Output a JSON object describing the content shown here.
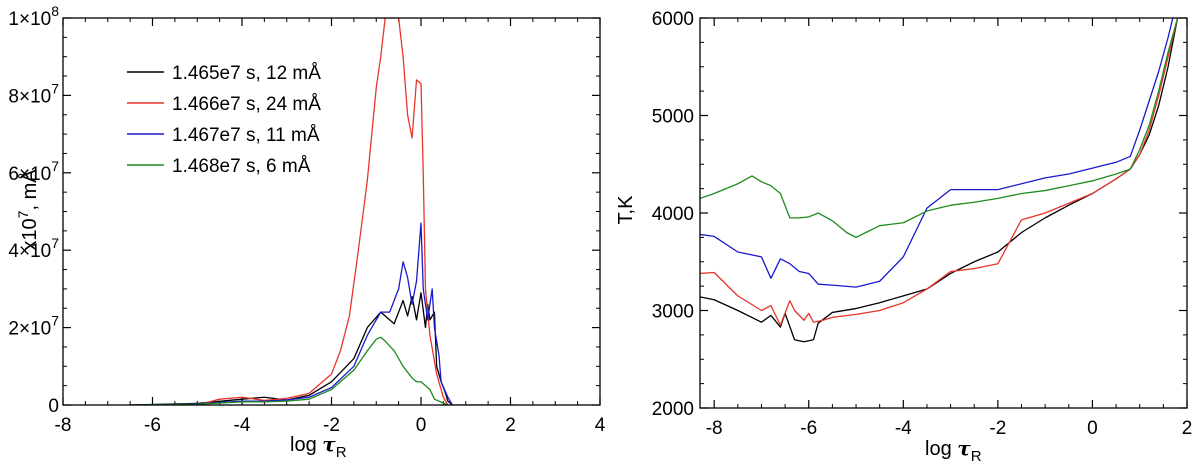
{
  "chart_data": [
    {
      "type": "line",
      "xlabel": "log τ_R",
      "ylabel": "x10^7, mÅ",
      "xlim": [
        -8,
        4
      ],
      "ylim": [
        0,
        100000000
      ],
      "x_ticks": [
        "-8",
        "-6",
        "-4",
        "-2",
        "0",
        "2",
        "4"
      ],
      "y_ticks": [
        "0",
        "2×10^7",
        "4×10^7",
        "6×10^7",
        "8×10^7",
        "1×10^8"
      ],
      "legend_position": "top-left",
      "series": [
        {
          "name": "1.465e7 s,  12 mÅ",
          "color": "#000000",
          "points": [
            [
              -6.5,
              0
            ],
            [
              -5,
              400000
            ],
            [
              -4,
              1500000
            ],
            [
              -3.5,
              2000000
            ],
            [
              -3,
              1300000
            ],
            [
              -2.5,
              2500000
            ],
            [
              -2,
              6000000
            ],
            [
              -1.5,
              12000000
            ],
            [
              -1.2,
              20000000
            ],
            [
              -0.9,
              24000000
            ],
            [
              -0.6,
              21000000
            ],
            [
              -0.4,
              27000000
            ],
            [
              -0.3,
              23000000
            ],
            [
              -0.2,
              28000000
            ],
            [
              -0.1,
              22000000
            ],
            [
              0,
              29000000
            ],
            [
              0.1,
              20000000
            ],
            [
              0.15,
              26000000
            ],
            [
              0.2,
              22000000
            ],
            [
              0.3,
              24000000
            ],
            [
              0.35,
              10000000
            ],
            [
              0.45,
              6000000
            ],
            [
              0.55,
              3000000
            ],
            [
              0.6,
              1000000
            ],
            [
              0.7,
              0
            ]
          ]
        },
        {
          "name": "1.466e7 s,  24 mÅ",
          "color": "#e8352a",
          "points": [
            [
              -5,
              0
            ],
            [
              -4.5,
              1500000
            ],
            [
              -4,
              2000000
            ],
            [
              -3.5,
              1200000
            ],
            [
              -3,
              1700000
            ],
            [
              -2.5,
              3000000
            ],
            [
              -2,
              8000000
            ],
            [
              -1.8,
              14000000
            ],
            [
              -1.6,
              23000000
            ],
            [
              -1.4,
              40000000
            ],
            [
              -1.2,
              58000000
            ],
            [
              -1.1,
              70000000
            ],
            [
              -1,
              82000000
            ],
            [
              -0.9,
              90000000
            ],
            [
              -0.8,
              100000000
            ],
            [
              -0.7,
              100000000
            ],
            [
              -0.6,
              100000000
            ],
            [
              -0.5,
              100000000
            ],
            [
              -0.4,
              90000000
            ],
            [
              -0.3,
              75000000
            ],
            [
              -0.2,
              69000000
            ],
            [
              -0.1,
              84000000
            ],
            [
              0,
              83000000
            ],
            [
              0.05,
              60000000
            ],
            [
              0.1,
              30000000
            ],
            [
              0.2,
              18000000
            ],
            [
              0.35,
              8000000
            ],
            [
              0.5,
              2000000
            ],
            [
              0.6,
              0
            ]
          ]
        },
        {
          "name": "1.467e7 s,  11 mÅ",
          "color": "#1a1acc",
          "points": [
            [
              -6.5,
              0
            ],
            [
              -5,
              300000
            ],
            [
              -4,
              1000000
            ],
            [
              -3.5,
              1000000
            ],
            [
              -3,
              1300000
            ],
            [
              -2.5,
              2000000
            ],
            [
              -2,
              4500000
            ],
            [
              -1.5,
              10000000
            ],
            [
              -1.2,
              18000000
            ],
            [
              -0.9,
              24000000
            ],
            [
              -0.7,
              24000000
            ],
            [
              -0.5,
              30000000
            ],
            [
              -0.4,
              37000000
            ],
            [
              -0.3,
              33000000
            ],
            [
              -0.2,
              26000000
            ],
            [
              -0.1,
              32000000
            ],
            [
              0,
              47000000
            ],
            [
              0.05,
              30000000
            ],
            [
              0.15,
              22000000
            ],
            [
              0.25,
              30000000
            ],
            [
              0.3,
              20000000
            ],
            [
              0.4,
              13000000
            ],
            [
              0.45,
              6000000
            ],
            [
              0.6,
              2000000
            ],
            [
              0.7,
              0
            ]
          ]
        },
        {
          "name": "1.468e7 s,  6  mÅ",
          "color": "#1e8c1e",
          "points": [
            [
              -6.5,
              0
            ],
            [
              -5,
              200000
            ],
            [
              -4,
              800000
            ],
            [
              -3.5,
              800000
            ],
            [
              -3,
              1000000
            ],
            [
              -2.5,
              1500000
            ],
            [
              -2,
              4000000
            ],
            [
              -1.5,
              9000000
            ],
            [
              -1.2,
              14000000
            ],
            [
              -1,
              17000000
            ],
            [
              -0.9,
              17500000
            ],
            [
              -0.8,
              16500000
            ],
            [
              -0.6,
              14000000
            ],
            [
              -0.4,
              10000000
            ],
            [
              -0.2,
              7000000
            ],
            [
              -0.1,
              6000000
            ],
            [
              0,
              6000000
            ],
            [
              0.1,
              5000000
            ],
            [
              0.2,
              4000000
            ],
            [
              0.3,
              1500000
            ],
            [
              0.4,
              1000000
            ],
            [
              0.5,
              500000
            ],
            [
              0.6,
              0
            ],
            [
              2.1,
              0
            ]
          ]
        }
      ]
    },
    {
      "type": "line",
      "xlabel": "log τ_R",
      "ylabel": "T,K",
      "xlim": [
        -8.3,
        2
      ],
      "ylim": [
        2000,
        6000
      ],
      "x_ticks": [
        "-8",
        "-6",
        "-4",
        "-2",
        "0",
        "2"
      ],
      "y_ticks": [
        "2000",
        "3000",
        "4000",
        "5000",
        "6000"
      ],
      "series": [
        {
          "color": "#000000",
          "points": [
            [
              -8.3,
              3140
            ],
            [
              -8,
              3110
            ],
            [
              -7.5,
              3000
            ],
            [
              -7,
              2880
            ],
            [
              -6.8,
              2950
            ],
            [
              -6.6,
              2830
            ],
            [
              -6.5,
              2970
            ],
            [
              -6.3,
              2700
            ],
            [
              -6.1,
              2680
            ],
            [
              -5.9,
              2700
            ],
            [
              -5.8,
              2870
            ],
            [
              -5.5,
              2980
            ],
            [
              -5,
              3020
            ],
            [
              -4.5,
              3080
            ],
            [
              -4,
              3150
            ],
            [
              -3.5,
              3220
            ],
            [
              -3,
              3380
            ],
            [
              -2.5,
              3500
            ],
            [
              -2,
              3600
            ],
            [
              -1.5,
              3800
            ],
            [
              -1,
              3950
            ],
            [
              -0.5,
              4080
            ],
            [
              0,
              4200
            ],
            [
              0.5,
              4350
            ],
            [
              0.8,
              4450
            ],
            [
              1,
              4600
            ],
            [
              1.2,
              4800
            ],
            [
              1.4,
              5100
            ],
            [
              1.6,
              5500
            ],
            [
              1.8,
              6000
            ]
          ]
        },
        {
          "color": "#e8352a",
          "points": [
            [
              -8.3,
              3380
            ],
            [
              -8,
              3390
            ],
            [
              -7.5,
              3150
            ],
            [
              -7,
              3000
            ],
            [
              -6.8,
              3050
            ],
            [
              -6.6,
              2850
            ],
            [
              -6.4,
              3100
            ],
            [
              -6.3,
              3000
            ],
            [
              -6.1,
              2900
            ],
            [
              -6,
              2970
            ],
            [
              -5.9,
              2880
            ],
            [
              -5.7,
              2900
            ],
            [
              -5.5,
              2930
            ],
            [
              -5,
              2960
            ],
            [
              -4.5,
              3000
            ],
            [
              -4,
              3080
            ],
            [
              -3.5,
              3220
            ],
            [
              -3,
              3400
            ],
            [
              -2.5,
              3430
            ],
            [
              -2,
              3480
            ],
            [
              -1.5,
              3930
            ],
            [
              -1,
              4000
            ],
            [
              -0.5,
              4100
            ],
            [
              0,
              4200
            ],
            [
              0.5,
              4350
            ],
            [
              0.8,
              4450
            ],
            [
              1,
              4600
            ],
            [
              1.2,
              4850
            ],
            [
              1.4,
              5200
            ],
            [
              1.6,
              5600
            ],
            [
              1.8,
              6000
            ]
          ]
        },
        {
          "color": "#1a1acc",
          "points": [
            [
              -8.3,
              3780
            ],
            [
              -8,
              3760
            ],
            [
              -7.5,
              3600
            ],
            [
              -7,
              3550
            ],
            [
              -6.8,
              3330
            ],
            [
              -6.6,
              3530
            ],
            [
              -6.4,
              3480
            ],
            [
              -6.2,
              3400
            ],
            [
              -6,
              3380
            ],
            [
              -5.8,
              3270
            ],
            [
              -5.5,
              3260
            ],
            [
              -5,
              3240
            ],
            [
              -4.5,
              3300
            ],
            [
              -4,
              3550
            ],
            [
              -3.5,
              4050
            ],
            [
              -3,
              4240
            ],
            [
              -2.5,
              4240
            ],
            [
              -2,
              4240
            ],
            [
              -1.5,
              4300
            ],
            [
              -1,
              4360
            ],
            [
              -0.5,
              4400
            ],
            [
              0,
              4460
            ],
            [
              0.5,
              4520
            ],
            [
              0.8,
              4580
            ],
            [
              1,
              4850
            ],
            [
              1.2,
              5150
            ],
            [
              1.4,
              5450
            ],
            [
              1.6,
              5800
            ],
            [
              1.7,
              6000
            ]
          ]
        },
        {
          "color": "#1e8c1e",
          "points": [
            [
              -8.3,
              4150
            ],
            [
              -8,
              4200
            ],
            [
              -7.5,
              4300
            ],
            [
              -7.2,
              4380
            ],
            [
              -7,
              4320
            ],
            [
              -6.8,
              4280
            ],
            [
              -6.6,
              4200
            ],
            [
              -6.4,
              3950
            ],
            [
              -6.2,
              3950
            ],
            [
              -6,
              3960
            ],
            [
              -5.8,
              4000
            ],
            [
              -5.5,
              3920
            ],
            [
              -5.2,
              3800
            ],
            [
              -5,
              3750
            ],
            [
              -4.5,
              3870
            ],
            [
              -4,
              3900
            ],
            [
              -3.5,
              4020
            ],
            [
              -3,
              4080
            ],
            [
              -2.5,
              4110
            ],
            [
              -2,
              4150
            ],
            [
              -1.5,
              4200
            ],
            [
              -1,
              4230
            ],
            [
              -0.5,
              4280
            ],
            [
              0,
              4330
            ],
            [
              0.5,
              4400
            ],
            [
              0.8,
              4450
            ],
            [
              1,
              4650
            ],
            [
              1.2,
              4900
            ],
            [
              1.4,
              5250
            ],
            [
              1.6,
              5650
            ],
            [
              1.8,
              6000
            ]
          ]
        }
      ]
    }
  ]
}
